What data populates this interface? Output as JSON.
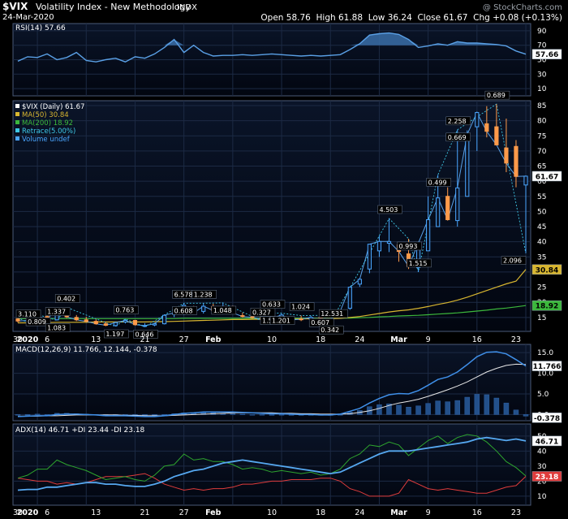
{
  "header": {
    "symbol": "$VIX",
    "name": "Volatility Index - New Methodology",
    "exchange": "INDX",
    "date": "24-Mar-2020",
    "watermark": "@ StockCharts.com",
    "quote": "Open 58.76  High 61.88  Low 36.24  Close 61.67  Chg +0.08 (+0.13%)"
  },
  "colors": {
    "price_line": "#5aa0e6",
    "up_candle": "#4aa6ff",
    "down_candle": "#ff9a4a",
    "ma50": "#d8b630",
    "ma200": "#3cb83c",
    "retrace": "#3ec8e6",
    "rsi_fill": "#3a6fa8",
    "macd_hist": "#23508a",
    "pdi": "#2ea52e",
    "mdi": "#e03c3c",
    "adx": "#56a8f0"
  },
  "x_axis_labels": [
    "30",
    "2020",
    "6",
    "13",
    "21",
    "27",
    "Feb",
    "10",
    "18",
    "24",
    "Mar",
    "9",
    "16",
    "23"
  ],
  "chart_data": [
    {
      "type": "line",
      "panel": "rsi",
      "legend": "RSI(14) 57.66",
      "y_ticks": [
        "90",
        "70",
        "50",
        "30",
        "10"
      ],
      "ylim": [
        0,
        100
      ],
      "last_value_label": "57.66",
      "series": [
        {
          "name": "RSI(14)",
          "values": [
            48,
            54,
            53,
            58,
            50,
            53,
            60,
            49,
            47,
            50,
            52,
            47,
            54,
            52,
            58,
            67,
            78,
            60,
            70,
            60,
            55,
            56,
            56,
            57,
            56,
            57,
            58,
            57,
            56,
            55,
            56,
            55,
            56,
            57,
            64,
            72,
            84,
            86,
            87,
            85,
            78,
            67,
            69,
            72,
            70,
            75,
            73,
            73,
            72,
            71,
            69,
            62,
            57.66
          ]
        }
      ]
    },
    {
      "type": "candlestick",
      "panel": "price",
      "legend": [
        "$VIX (Daily) 61.67",
        "MA(50) 30.84",
        "MA(200) 18.92",
        "Retrace(5.00%)",
        "Volume undef"
      ],
      "y_ticks": [
        "85",
        "80",
        "75",
        "70",
        "65",
        "60",
        "55",
        "50",
        "45",
        "40",
        "35",
        "30",
        "25",
        "20",
        "15"
      ],
      "ylim": [
        12,
        85
      ],
      "last_value_labels": [
        "61.67",
        "30.84",
        "18.92"
      ],
      "candles": [
        [
          14.5,
          15.0,
          13.3,
          13.8
        ],
        [
          13.8,
          14.5,
          13.2,
          14.0
        ],
        [
          14.0,
          16.0,
          13.6,
          15.3
        ],
        [
          15.3,
          15.8,
          14.0,
          14.4
        ],
        [
          14.2,
          18.0,
          14.0,
          17.9
        ],
        [
          17.5,
          18.3,
          14.8,
          15.2
        ],
        [
          15.0,
          15.8,
          13.8,
          14.2
        ],
        [
          14.2,
          15.2,
          13.4,
          13.7
        ],
        [
          13.7,
          14.4,
          12.6,
          12.9
        ],
        [
          12.9,
          13.5,
          12.1,
          12.4
        ],
        [
          12.3,
          13.6,
          12.0,
          13.3
        ],
        [
          13.5,
          14.5,
          13.0,
          14.0
        ],
        [
          14.0,
          14.2,
          12.3,
          12.6
        ],
        [
          12.3,
          13.1,
          11.9,
          12.3
        ],
        [
          12.5,
          13.2,
          12.1,
          12.9
        ],
        [
          12.9,
          16.0,
          12.7,
          15.7
        ],
        [
          16.0,
          17.2,
          15.1,
          16.5
        ],
        [
          17.5,
          19.7,
          15.8,
          19.0
        ],
        [
          18.0,
          18.8,
          16.4,
          16.5
        ],
        [
          17.0,
          19.7,
          16.3,
          18.7
        ],
        [
          18.6,
          19.5,
          17.0,
          17.3
        ],
        [
          17.0,
          19.8,
          16.0,
          17.5
        ],
        [
          17.5,
          18.9,
          16.4,
          16.5
        ],
        [
          15.6,
          16.6,
          15.0,
          15.3
        ],
        [
          15.2,
          16.2,
          14.6,
          15.0
        ],
        [
          15.0,
          15.8,
          13.8,
          14.3
        ],
        [
          15.5,
          16.4,
          14.7,
          14.7
        ],
        [
          15.0,
          16.4,
          14.9,
          15.8
        ],
        [
          14.9,
          15.3,
          13.9,
          14.2
        ],
        [
          14.5,
          15.6,
          13.8,
          14.4
        ],
        [
          14.4,
          15.6,
          14.0,
          15.0
        ],
        [
          15.0,
          15.7,
          13.5,
          13.7
        ],
        [
          13.6,
          14.6,
          13.3,
          14.4
        ],
        [
          15.3,
          17.3,
          15.1,
          17.1
        ],
        [
          18.0,
          25.2,
          17.5,
          25.0
        ],
        [
          26.0,
          28.0,
          25.1,
          27.6
        ],
        [
          31.0,
          39.2,
          29.6,
          39.2
        ],
        [
          37.0,
          42.0,
          35.0,
          40.1
        ],
        [
          39.5,
          47.7,
          36.6,
          40.1
        ],
        [
          39.0,
          39.7,
          33.4,
          36.8
        ],
        [
          36.0,
          41.0,
          31.0,
          31.9
        ],
        [
          31.5,
          40.0,
          30.0,
          39.6
        ],
        [
          37.0,
          55.0,
          37.0,
          47.3
        ],
        [
          45.0,
          62.1,
          45.0,
          54.5
        ],
        [
          55.0,
          58.0,
          47.0,
          47.3
        ],
        [
          47.0,
          77.0,
          45.0,
          57.8
        ],
        [
          55.0,
          76.8,
          55.0,
          75.5
        ],
        [
          78.0,
          83.0,
          70.0,
          82.7
        ],
        [
          79.0,
          84.8,
          74.5,
          76.5
        ],
        [
          78.0,
          85.5,
          72.0,
          72.0
        ],
        [
          71.0,
          80.7,
          63.0,
          66.0
        ],
        [
          71.5,
          73.6,
          58.0,
          61.6
        ],
        [
          58.76,
          61.88,
          36.24,
          61.67
        ]
      ],
      "retrace_labels": [
        "3.110",
        "0.809",
        "1.337",
        "1.083",
        "0.402",
        "1.197",
        "0.763",
        "0.646",
        "6.578",
        "0.608",
        "1.238",
        "1.048",
        "0.327",
        "1.561",
        "0.633",
        "1.201",
        "1.024",
        "0.607",
        "12.531",
        "0.342",
        "4.503",
        "0.993",
        "1.515",
        "0.499",
        "2.258",
        "0.669",
        "0.689",
        "2.096"
      ],
      "series": [
        {
          "name": "MA(50)",
          "values": [
            13.2,
            13.2,
            13.3,
            13.3,
            13.4,
            13.4,
            13.4,
            13.4,
            13.5,
            13.5,
            13.5,
            13.5,
            13.5,
            13.5,
            13.6,
            13.6,
            13.7,
            13.8,
            13.9,
            14.0,
            14.1,
            14.2,
            14.3,
            14.3,
            14.4,
            14.4,
            14.4,
            14.5,
            14.5,
            14.5,
            14.6,
            14.6,
            14.6,
            14.7,
            15.0,
            15.3,
            15.8,
            16.3,
            16.8,
            17.2,
            17.5,
            18.0,
            18.6,
            19.3,
            19.9,
            20.7,
            21.7,
            22.8,
            23.9,
            25.0,
            26.1,
            27.0,
            30.84
          ]
        },
        {
          "name": "MA(200)",
          "values": [
            14.6,
            14.6,
            14.6,
            14.6,
            14.6,
            14.6,
            14.6,
            14.6,
            14.6,
            14.6,
            14.6,
            14.6,
            14.6,
            14.6,
            14.6,
            14.6,
            14.6,
            14.7,
            14.7,
            14.7,
            14.7,
            14.7,
            14.7,
            14.7,
            14.7,
            14.7,
            14.7,
            14.7,
            14.7,
            14.7,
            14.7,
            14.7,
            14.7,
            14.8,
            14.8,
            14.9,
            15.0,
            15.2,
            15.3,
            15.5,
            15.6,
            15.7,
            15.9,
            16.1,
            16.3,
            16.5,
            16.8,
            17.1,
            17.4,
            17.8,
            18.1,
            18.5,
            18.92
          ]
        }
      ]
    },
    {
      "type": "line",
      "panel": "macd",
      "legend": "MACD(12,26,9) 11.766, 12.144, -0.378",
      "y_ticks": [
        "15.0",
        "10.0",
        "5.0",
        "0.0"
      ],
      "ylim": [
        -1.5,
        17
      ],
      "last_value_labels": [
        "11.766",
        "-0.378"
      ],
      "series": [
        {
          "name": "MACD",
          "values": [
            -0.5,
            -0.4,
            -0.3,
            -0.3,
            0.0,
            0.1,
            0.1,
            0.0,
            -0.1,
            -0.3,
            -0.3,
            -0.3,
            -0.4,
            -0.5,
            -0.5,
            -0.3,
            0.0,
            0.3,
            0.4,
            0.6,
            0.6,
            0.6,
            0.6,
            0.5,
            0.4,
            0.3,
            0.2,
            0.2,
            0.1,
            0.0,
            0.0,
            -0.1,
            -0.1,
            0.1,
            0.8,
            1.5,
            2.8,
            3.9,
            4.8,
            5.1,
            5.0,
            5.8,
            7.1,
            8.5,
            9.1,
            10.3,
            12.1,
            14.0,
            15.1,
            15.2,
            14.7,
            13.3,
            11.766
          ]
        },
        {
          "name": "Signal",
          "values": [
            -0.4,
            -0.4,
            -0.4,
            -0.3,
            -0.3,
            -0.2,
            -0.1,
            -0.1,
            -0.1,
            -0.1,
            -0.1,
            -0.2,
            -0.2,
            -0.3,
            -0.3,
            -0.3,
            -0.2,
            -0.1,
            0.0,
            0.1,
            0.2,
            0.3,
            0.4,
            0.4,
            0.4,
            0.4,
            0.4,
            0.3,
            0.3,
            0.2,
            0.2,
            0.1,
            0.1,
            0.1,
            0.2,
            0.5,
            0.9,
            1.5,
            2.2,
            2.8,
            3.2,
            3.7,
            4.4,
            5.2,
            6.0,
            6.9,
            7.9,
            9.1,
            10.3,
            11.2,
            11.9,
            12.2,
            12.144
          ]
        },
        {
          "name": "Histogram",
          "values": [
            -0.1,
            0.0,
            0.1,
            0.0,
            0.3,
            0.3,
            0.2,
            0.1,
            0.0,
            -0.2,
            -0.2,
            -0.1,
            -0.2,
            -0.2,
            -0.2,
            0.0,
            0.2,
            0.4,
            0.4,
            0.5,
            0.4,
            0.3,
            0.2,
            0.1,
            0.0,
            -0.1,
            -0.2,
            -0.1,
            -0.2,
            -0.2,
            -0.2,
            -0.2,
            -0.2,
            0.0,
            0.6,
            1.0,
            1.9,
            2.4,
            2.6,
            2.3,
            1.8,
            2.1,
            2.7,
            3.3,
            3.1,
            3.4,
            4.2,
            4.9,
            4.8,
            4.0,
            2.8,
            1.1,
            -0.378
          ]
        }
      ]
    },
    {
      "type": "line",
      "panel": "adx",
      "legend": "ADX(14) 46.71  +DI 23.44  -DI 23.18",
      "y_ticks": [
        "50",
        "40",
        "30",
        "20",
        "10"
      ],
      "ylim": [
        4,
        58
      ],
      "last_value_labels": [
        "46.71",
        "23.18"
      ],
      "series": [
        {
          "name": "ADX",
          "values": [
            14,
            14.5,
            14.5,
            16,
            16,
            17,
            18,
            19,
            19,
            18,
            18,
            17,
            16.5,
            16.5,
            18,
            20,
            23,
            25,
            27,
            28,
            30,
            32,
            33,
            34,
            33,
            32,
            31,
            30,
            29,
            28,
            27,
            26,
            25,
            26,
            29,
            32,
            35,
            38,
            40,
            40,
            40,
            41,
            42,
            43,
            44,
            45,
            46,
            48,
            49,
            48,
            47,
            48,
            46.71
          ]
        },
        {
          "name": "+DI",
          "values": [
            22,
            24,
            28,
            28,
            34,
            31,
            29,
            27,
            24,
            21,
            22,
            23,
            21,
            20,
            24,
            30,
            31,
            38,
            34,
            35,
            33,
            33,
            31,
            28,
            29,
            28,
            26,
            27,
            26,
            25,
            26,
            24,
            25,
            28,
            35,
            38,
            44,
            43,
            46,
            44,
            37,
            42,
            47,
            50,
            45,
            49,
            51,
            50,
            46,
            40,
            33,
            29,
            23.44
          ]
        },
        {
          "name": "-DI",
          "values": [
            22,
            21,
            20,
            20,
            18,
            19,
            18,
            19,
            21,
            23,
            23,
            23,
            24,
            25,
            22,
            18,
            16,
            14,
            15,
            14,
            15,
            15,
            16,
            18,
            18,
            19,
            20,
            20,
            21,
            21,
            21,
            22,
            22,
            20,
            15,
            13,
            10,
            10,
            10,
            12,
            21,
            18,
            15,
            14,
            15,
            14,
            13,
            12,
            12,
            14,
            16,
            17,
            23.18
          ]
        }
      ]
    }
  ]
}
